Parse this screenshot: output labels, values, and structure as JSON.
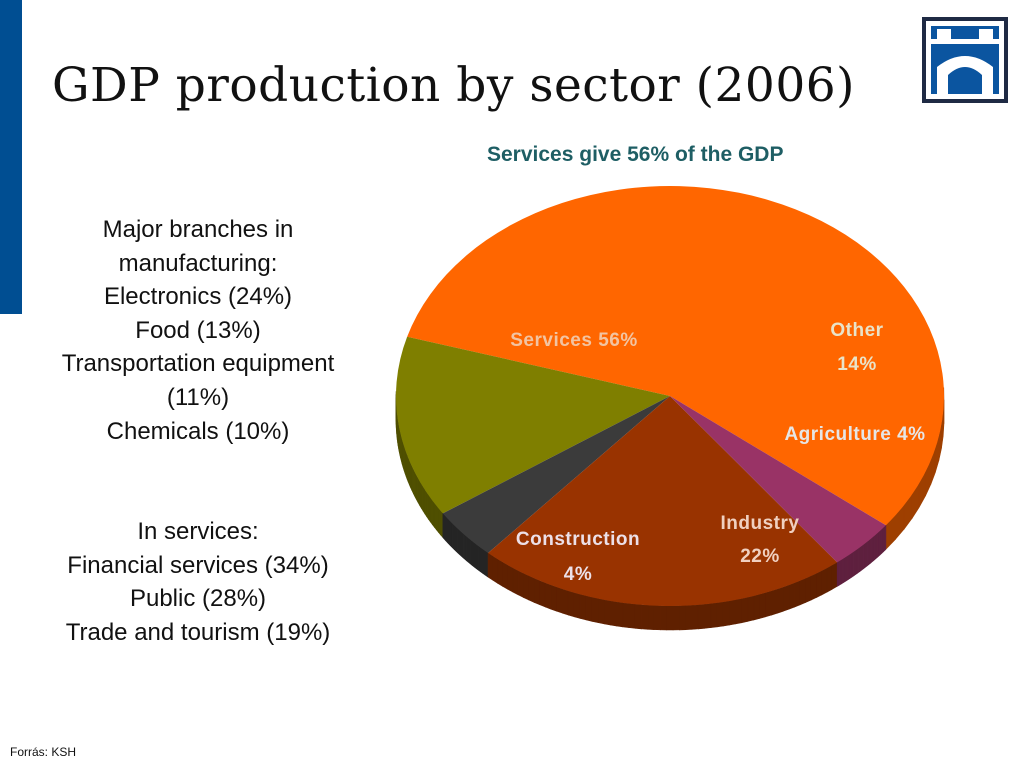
{
  "title": "GDP production by sector (2006)",
  "left_text": {
    "manufacturing": [
      "Major branches in",
      "manufacturing:",
      "Electronics (24%)",
      "Food (13%)",
      "Transportation equipment",
      "(11%)",
      "Chemicals (10%)"
    ],
    "services": [
      "In services:",
      "Financial services (34%)",
      "Public (28%)",
      "Trade and tourism (19%)"
    ]
  },
  "source": "Forrás: KSH",
  "icons": {
    "logo": "bridge-logo-icon"
  },
  "colors": {
    "accent_bar": "#004e92",
    "subtitle": "#1e5e64"
  },
  "chart_data": {
    "type": "pie",
    "title": "Services give 56% of the GDP",
    "slices": [
      {
        "label": "Services",
        "value": 56,
        "value_label": "56%",
        "color": "#ff6600",
        "label_color": "#f2c4a2"
      },
      {
        "label": "Other",
        "value": 14,
        "value_label": "14%",
        "color": "#7f7f00",
        "label_color": "#e9e3c9"
      },
      {
        "label": "Agriculture",
        "value": 4,
        "value_label": "4%",
        "color": "#3b3b3b",
        "label_color": "#e6e6e6"
      },
      {
        "label": "Industry",
        "value": 22,
        "value_label": "22%",
        "color": "#993300",
        "label_color": "#f0d0c0"
      },
      {
        "label": "Construction",
        "value": 4,
        "value_label": "4%",
        "color": "#993366",
        "label_color": "#ece0e8"
      }
    ]
  }
}
